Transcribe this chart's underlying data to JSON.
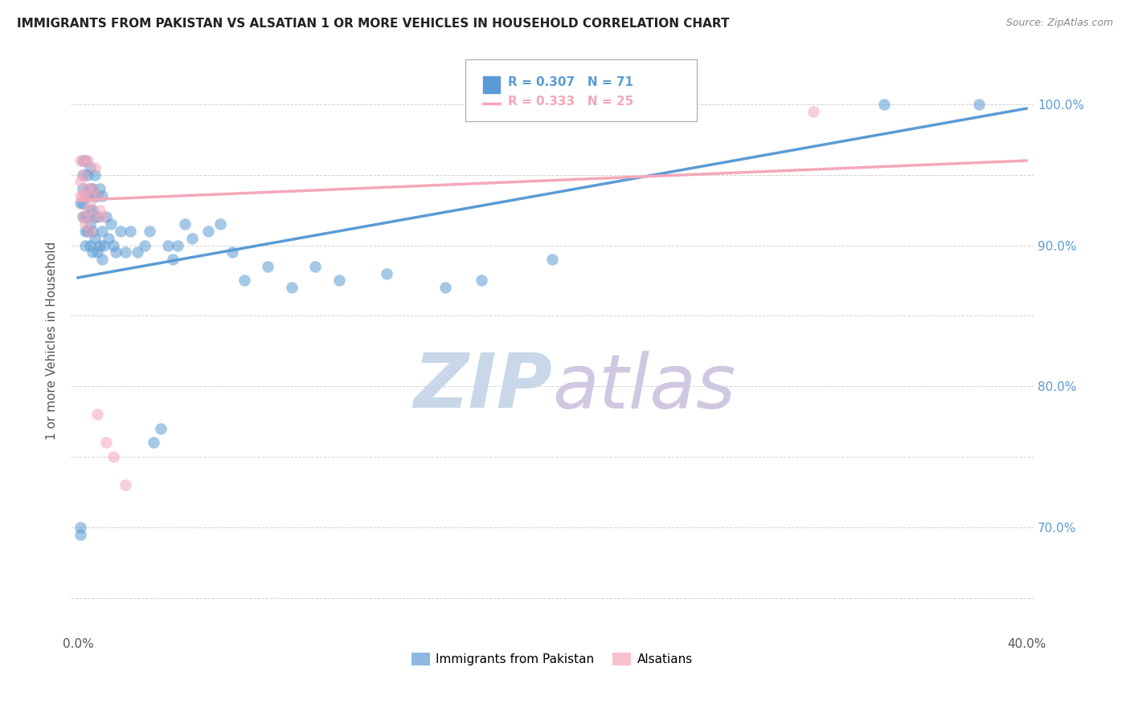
{
  "title": "IMMIGRANTS FROM PAKISTAN VS ALSATIAN 1 OR MORE VEHICLES IN HOUSEHOLD CORRELATION CHART",
  "source": "Source: ZipAtlas.com",
  "ylabel": "1 or more Vehicles in Household",
  "xlim": [
    -0.003,
    0.403
  ],
  "ylim": [
    0.625,
    1.04
  ],
  "xtick_positions": [
    0.0,
    0.05,
    0.1,
    0.15,
    0.2,
    0.25,
    0.3,
    0.35,
    0.4
  ],
  "xtick_labels": [
    "0.0%",
    "",
    "",
    "",
    "",
    "",
    "",
    "",
    "40.0%"
  ],
  "ytick_positions": [
    0.65,
    0.7,
    0.75,
    0.8,
    0.85,
    0.9,
    0.95,
    1.0
  ],
  "ytick_labels": [
    "",
    "70.0%",
    "",
    "80.0%",
    "",
    "90.0%",
    "",
    "100.0%"
  ],
  "blue_color": "#5B9BD5",
  "pink_color": "#F4A7B9",
  "blue_R": 0.307,
  "blue_N": 71,
  "pink_R": 0.333,
  "pink_N": 25,
  "watermark_zip": "ZIP",
  "watermark_atlas": "atlas",
  "legend_label_blue": "Immigrants from Pakistan",
  "legend_label_pink": "Alsatians",
  "blue_trend_x": [
    0.0,
    0.4
  ],
  "blue_trend_y": [
    0.877,
    0.997
  ],
  "pink_trend_x": [
    0.0,
    0.4
  ],
  "pink_trend_y": [
    0.932,
    0.96
  ],
  "blue_x": [
    0.001,
    0.001,
    0.001,
    0.002,
    0.002,
    0.002,
    0.002,
    0.002,
    0.003,
    0.003,
    0.003,
    0.003,
    0.003,
    0.004,
    0.004,
    0.004,
    0.004,
    0.005,
    0.005,
    0.005,
    0.005,
    0.005,
    0.006,
    0.006,
    0.006,
    0.006,
    0.007,
    0.007,
    0.007,
    0.007,
    0.008,
    0.008,
    0.008,
    0.009,
    0.009,
    0.01,
    0.01,
    0.01,
    0.011,
    0.012,
    0.013,
    0.014,
    0.015,
    0.016,
    0.018,
    0.02,
    0.022,
    0.025,
    0.028,
    0.03,
    0.032,
    0.035,
    0.038,
    0.04,
    0.042,
    0.045,
    0.048,
    0.055,
    0.06,
    0.065,
    0.07,
    0.08,
    0.09,
    0.1,
    0.11,
    0.13,
    0.155,
    0.17,
    0.2,
    0.34,
    0.38
  ],
  "blue_y": [
    0.695,
    0.7,
    0.93,
    0.92,
    0.93,
    0.94,
    0.95,
    0.96,
    0.9,
    0.91,
    0.92,
    0.935,
    0.96,
    0.91,
    0.92,
    0.935,
    0.95,
    0.9,
    0.915,
    0.925,
    0.94,
    0.955,
    0.895,
    0.91,
    0.925,
    0.94,
    0.905,
    0.92,
    0.935,
    0.95,
    0.895,
    0.92,
    0.935,
    0.9,
    0.94,
    0.89,
    0.91,
    0.935,
    0.9,
    0.92,
    0.905,
    0.915,
    0.9,
    0.895,
    0.91,
    0.895,
    0.91,
    0.895,
    0.9,
    0.91,
    0.76,
    0.77,
    0.9,
    0.89,
    0.9,
    0.915,
    0.905,
    0.91,
    0.915,
    0.895,
    0.875,
    0.885,
    0.87,
    0.885,
    0.875,
    0.88,
    0.87,
    0.875,
    0.89,
    1.0,
    1.0
  ],
  "pink_x": [
    0.001,
    0.001,
    0.001,
    0.002,
    0.002,
    0.002,
    0.003,
    0.003,
    0.003,
    0.004,
    0.004,
    0.004,
    0.005,
    0.005,
    0.006,
    0.006,
    0.007,
    0.008,
    0.009,
    0.01,
    0.012,
    0.015,
    0.02,
    0.31,
    0.008
  ],
  "pink_y": [
    0.935,
    0.945,
    0.96,
    0.92,
    0.935,
    0.95,
    0.915,
    0.935,
    0.96,
    0.925,
    0.94,
    0.96,
    0.91,
    0.93,
    0.92,
    0.94,
    0.955,
    0.935,
    0.925,
    0.92,
    0.76,
    0.75,
    0.73,
    0.995,
    0.78
  ]
}
